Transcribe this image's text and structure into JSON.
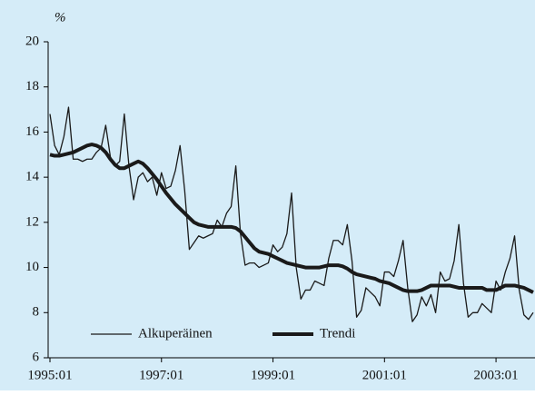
{
  "chart_data": {
    "type": "line",
    "y_label": "%",
    "categories": [
      "1995:01",
      null,
      null,
      null,
      null,
      null,
      null,
      null,
      null,
      null,
      null,
      null,
      null,
      null,
      null,
      null,
      null,
      null,
      null,
      null,
      null,
      null,
      null,
      null,
      "1997:01",
      null,
      null,
      null,
      null,
      null,
      null,
      null,
      null,
      null,
      null,
      null,
      null,
      null,
      null,
      null,
      null,
      null,
      null,
      null,
      null,
      null,
      null,
      null,
      "1999:01",
      null,
      null,
      null,
      null,
      null,
      null,
      null,
      null,
      null,
      null,
      null,
      null,
      null,
      null,
      null,
      null,
      null,
      null,
      null,
      null,
      null,
      null,
      null,
      "2001:01",
      null,
      null,
      null,
      null,
      null,
      null,
      null,
      null,
      null,
      null,
      null,
      null,
      null,
      null,
      null,
      null,
      null,
      null,
      null,
      null,
      null,
      null,
      null,
      "2003:01",
      null,
      null,
      null,
      null,
      null,
      null,
      null,
      null
    ],
    "series": [
      {
        "name": "Alkuperäinen",
        "color": "#1a1a1a",
        "width": 1.3,
        "values": [
          16.8,
          15.4,
          15.0,
          15.8,
          17.1,
          14.8,
          14.8,
          14.7,
          14.8,
          14.8,
          15.1,
          15.3,
          16.3,
          14.9,
          14.5,
          14.7,
          16.8,
          14.5,
          13.0,
          14.0,
          14.2,
          13.8,
          14.0,
          13.2,
          14.2,
          13.5,
          13.6,
          14.3,
          15.4,
          13.4,
          10.8,
          11.1,
          11.4,
          11.3,
          11.4,
          11.5,
          12.1,
          11.8,
          12.4,
          12.7,
          14.5,
          11.5,
          10.1,
          10.2,
          10.2,
          10.0,
          10.1,
          10.2,
          11.0,
          10.7,
          10.9,
          11.5,
          13.3,
          10.0,
          8.6,
          9.0,
          9.0,
          9.4,
          9.3,
          9.2,
          10.4,
          11.2,
          11.2,
          11.0,
          11.9,
          10.3,
          7.8,
          8.1,
          9.1,
          8.9,
          8.7,
          8.3,
          9.8,
          9.8,
          9.6,
          10.3,
          11.2,
          9.1,
          7.6,
          7.9,
          8.7,
          8.3,
          8.8,
          8.0,
          9.8,
          9.4,
          9.5,
          10.3,
          11.9,
          9.3,
          7.8,
          8.0,
          8.0,
          8.4,
          8.2,
          8.0,
          9.4,
          9.0,
          9.8,
          10.4,
          11.4,
          9.0,
          7.9,
          7.7,
          8.0
        ]
      },
      {
        "name": "Trendi",
        "color": "#1a1a1a",
        "width": 4,
        "values": [
          15.0,
          14.95,
          14.95,
          15.0,
          15.05,
          15.1,
          15.2,
          15.3,
          15.4,
          15.45,
          15.4,
          15.3,
          15.1,
          14.8,
          14.55,
          14.4,
          14.4,
          14.5,
          14.6,
          14.7,
          14.6,
          14.4,
          14.15,
          13.9,
          13.6,
          13.3,
          13.05,
          12.8,
          12.6,
          12.4,
          12.2,
          12.0,
          11.9,
          11.85,
          11.8,
          11.8,
          11.8,
          11.8,
          11.8,
          11.8,
          11.75,
          11.6,
          11.35,
          11.1,
          10.85,
          10.7,
          10.65,
          10.6,
          10.5,
          10.4,
          10.3,
          10.2,
          10.15,
          10.1,
          10.05,
          10.0,
          10.0,
          10.0,
          10.0,
          10.05,
          10.1,
          10.1,
          10.1,
          10.05,
          9.95,
          9.8,
          9.7,
          9.65,
          9.6,
          9.55,
          9.5,
          9.4,
          9.35,
          9.3,
          9.2,
          9.1,
          9.0,
          8.95,
          8.95,
          8.95,
          9.0,
          9.1,
          9.2,
          9.2,
          9.2,
          9.2,
          9.2,
          9.15,
          9.1,
          9.1,
          9.1,
          9.1,
          9.1,
          9.1,
          9.0,
          9.0,
          9.0,
          9.1,
          9.2,
          9.2,
          9.2,
          9.15,
          9.1,
          9.0,
          8.9
        ]
      }
    ],
    "ylim": [
      6,
      20
    ],
    "yticks": [
      6,
      8,
      10,
      12,
      14,
      16,
      18,
      20
    ],
    "grid": false,
    "legend": "lower center",
    "background": "#d5ecf8"
  }
}
